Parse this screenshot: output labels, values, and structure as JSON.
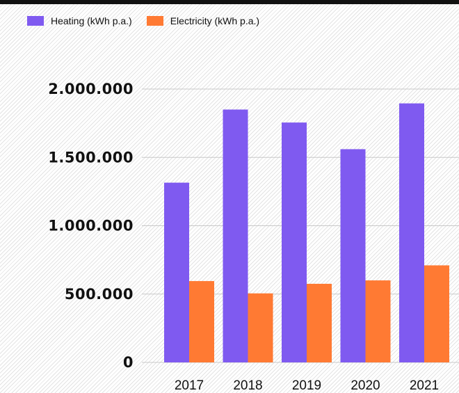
{
  "chart_data": {
    "type": "bar",
    "title": "",
    "xlabel": "",
    "ylabel": "",
    "categories": [
      "2017",
      "2018",
      "2019",
      "2020",
      "2021"
    ],
    "series": [
      {
        "name": "Heating (kWh p.a.)",
        "color": "#7f5af0",
        "values": [
          1315000,
          1850000,
          1755000,
          1560000,
          1895000
        ]
      },
      {
        "name": "Electricity (kWh p.a.)",
        "color": "#ff7a33",
        "values": [
          595000,
          505000,
          575000,
          600000,
          710000
        ]
      }
    ],
    "ylim": [
      0,
      2000000
    ],
    "yticks": [
      {
        "value": 0,
        "label": "0"
      },
      {
        "value": 500000,
        "label": "500.000"
      },
      {
        "value": 1000000,
        "label": "1.000.000"
      },
      {
        "value": 1500000,
        "label": "1.500.000"
      },
      {
        "value": 2000000,
        "label": "2.000.000"
      }
    ],
    "grid": true,
    "legend_position": "top-left"
  }
}
